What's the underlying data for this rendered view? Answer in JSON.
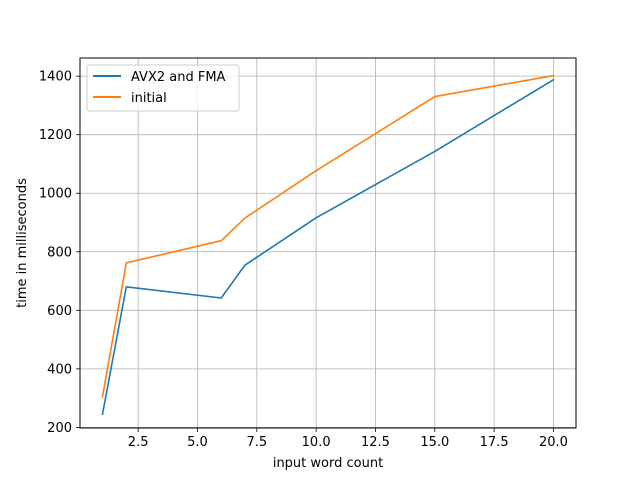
{
  "chart_data": {
    "type": "line",
    "xlabel": "input word count",
    "ylabel": "time in milliseconds",
    "xlim": [
      0.05,
      20.95
    ],
    "ylim": [
      198,
      1462
    ],
    "xticks": [
      2.5,
      5.0,
      7.5,
      10.0,
      12.5,
      15.0,
      17.5,
      20.0
    ],
    "xtick_labels": [
      "2.5",
      "5.0",
      "7.5",
      "10.0",
      "12.5",
      "15.0",
      "17.5",
      "20.0"
    ],
    "yticks": [
      200,
      400,
      600,
      800,
      1000,
      1200,
      1400
    ],
    "ytick_labels": [
      "200",
      "400",
      "600",
      "800",
      "1000",
      "1200",
      "1400"
    ],
    "grid": true,
    "legend_position": "top-left",
    "series": [
      {
        "name": "AVX2 and FMA",
        "color": "#1f77b4",
        "x": [
          1,
          2,
          6,
          7,
          10,
          15,
          20
        ],
        "y": [
          245,
          680,
          642,
          754,
          916,
          1143,
          1388
        ]
      },
      {
        "name": "initial",
        "color": "#ff7f0e",
        "x": [
          1,
          2,
          6,
          7,
          10,
          15,
          20
        ],
        "y": [
          305,
          762,
          838,
          915,
          1077,
          1330,
          1402
        ]
      }
    ]
  }
}
